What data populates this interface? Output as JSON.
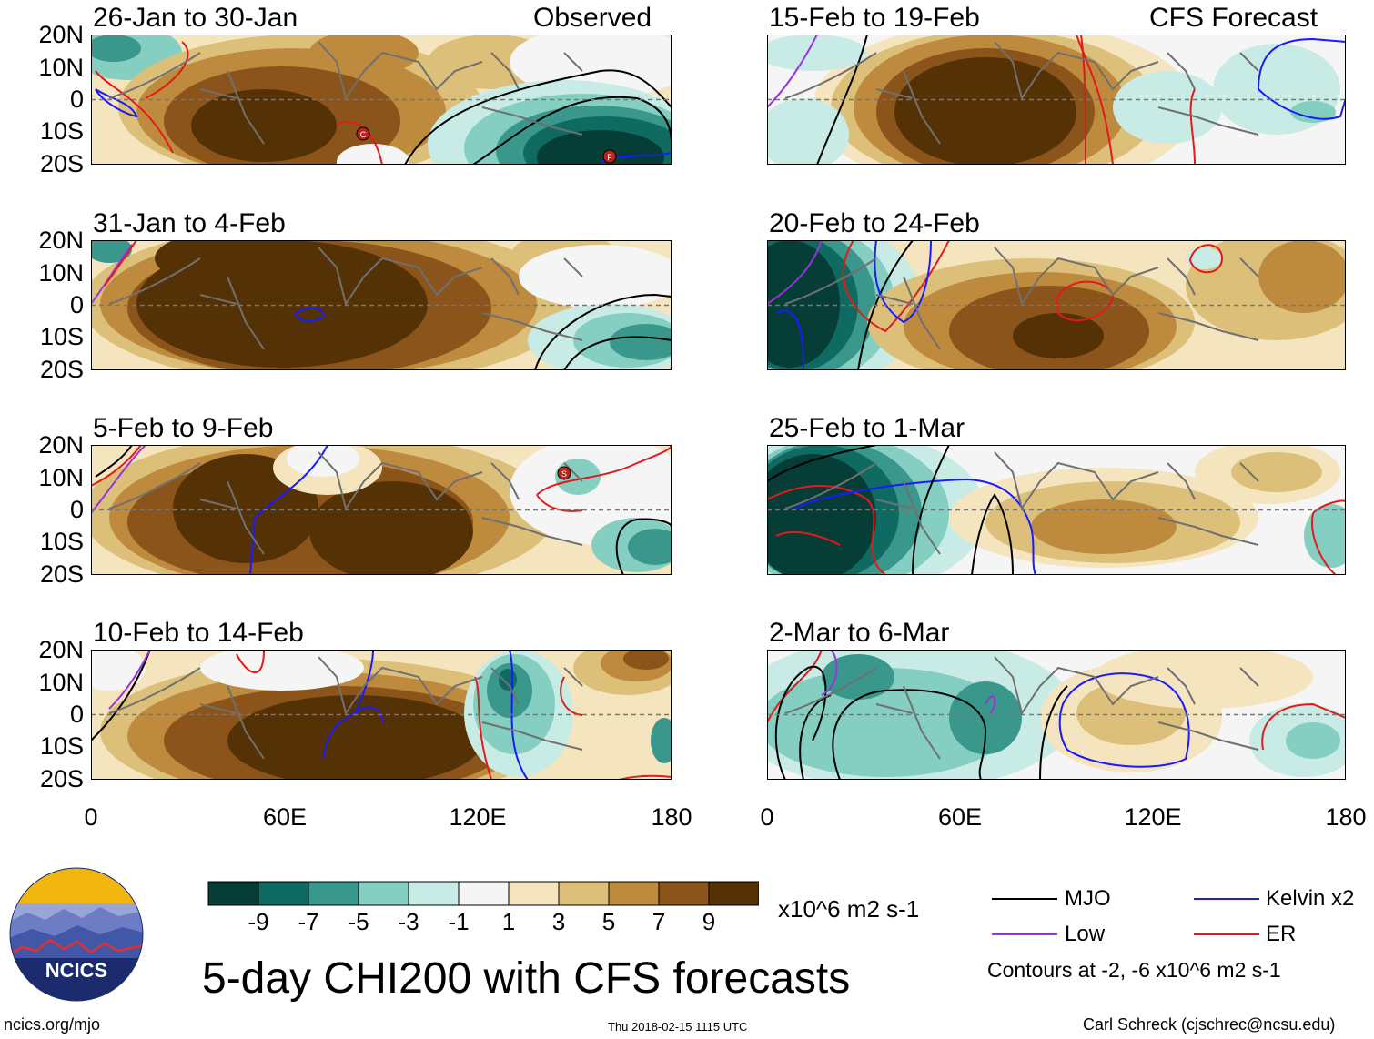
{
  "labels": {
    "observed": "Observed",
    "forecast": "CFS Forecast",
    "lat_ticks": [
      "20N",
      "10N",
      "0",
      "10S",
      "20S"
    ],
    "lon_ticks": [
      "0",
      "60E",
      "120E",
      "180"
    ]
  },
  "panels": [
    {
      "date": "26-Jan to 30-Jan",
      "column": "observed",
      "row": 0,
      "storms": [
        "C",
        "F"
      ]
    },
    {
      "date": "31-Jan to 4-Feb",
      "column": "observed",
      "row": 1
    },
    {
      "date": "5-Feb to 9-Feb",
      "column": "observed",
      "row": 2,
      "storms": [
        "S"
      ]
    },
    {
      "date": "10-Feb to 14-Feb",
      "column": "observed",
      "row": 3
    },
    {
      "date": "15-Feb to 19-Feb",
      "column": "forecast",
      "row": 0
    },
    {
      "date": "20-Feb to 24-Feb",
      "column": "forecast",
      "row": 1
    },
    {
      "date": "25-Feb to 1-Mar",
      "column": "forecast",
      "row": 2
    },
    {
      "date": "2-Mar to 6-Mar",
      "column": "forecast",
      "row": 3
    }
  ],
  "colorbar": {
    "labels": [
      "-9",
      "-7",
      "-5",
      "-3",
      "-1",
      "1",
      "3",
      "5",
      "7",
      "9"
    ],
    "colors": [
      "#063e37",
      "#0f6b62",
      "#3a978c",
      "#84cfc1",
      "#c8ece5",
      "#f5f5f5",
      "#f5e5bf",
      "#dcc07a",
      "#be8a3e",
      "#8a541a",
      "#553205"
    ],
    "units": "x10^6 m2 s-1"
  },
  "legend": {
    "items": [
      {
        "label": "MJO",
        "color": "#000000"
      },
      {
        "label": "Kelvin x2",
        "color": "#1a1aff"
      },
      {
        "label": "Low",
        "color": "#9933dd"
      },
      {
        "label": "ER",
        "color": "#e31a1c"
      }
    ],
    "contours_note": "Contours at -2, -6 x10^6 m2 s-1"
  },
  "title": "5-day CHI200 with CFS forecasts",
  "logo_text": "NCICS",
  "footer": {
    "url": "ncics.org/mjo",
    "timestamp": "Thu 2018-02-15 1115 UTC",
    "author": "Carl Schreck (cjschrec@ncsu.edu)"
  }
}
